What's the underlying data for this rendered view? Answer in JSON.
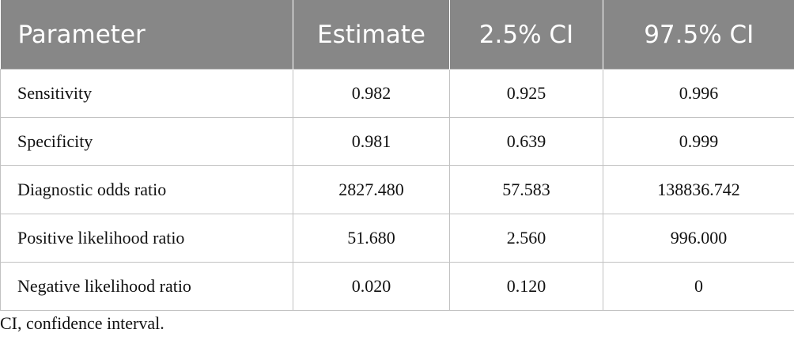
{
  "table": {
    "headers": [
      "Parameter",
      "Estimate",
      "2.5% CI",
      "97.5% CI"
    ],
    "rows": [
      [
        "Sensitivity",
        "0.982",
        "0.925",
        "0.996"
      ],
      [
        "Specificity",
        "0.981",
        "0.639",
        "0.999"
      ],
      [
        "Diagnostic odds ratio",
        "2827.480",
        "57.583",
        "138836.742"
      ],
      [
        "Positive likelihood ratio",
        "51.680",
        "2.560",
        "996.000"
      ],
      [
        "Negative likelihood ratio",
        "0.020",
        "0.120",
        "0"
      ]
    ]
  },
  "footnote": "CI, confidence interval.",
  "colors": {
    "header_bg": "#878787",
    "header_text": "#ffffff",
    "grid": "#c2c2c2"
  }
}
